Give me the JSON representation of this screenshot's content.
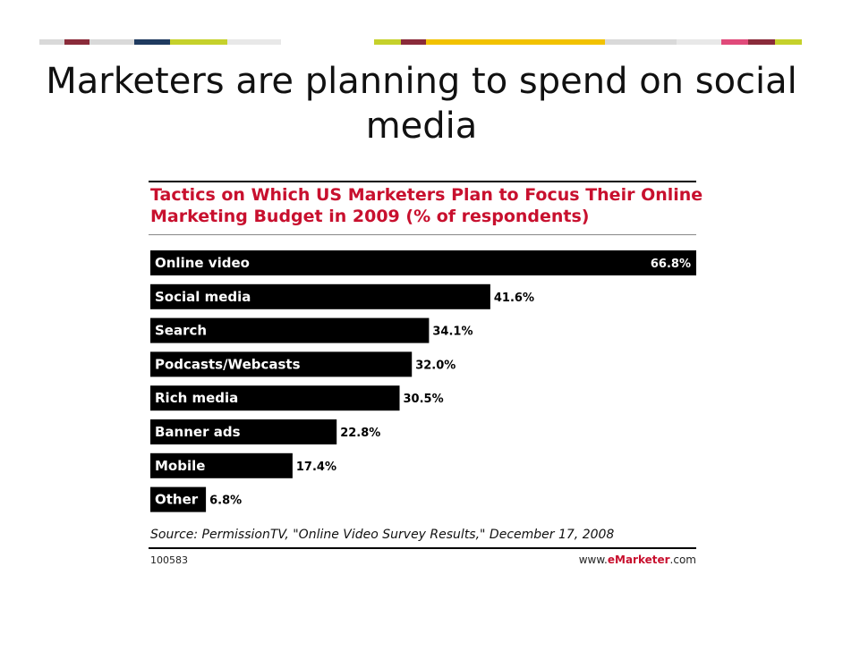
{
  "slide": {
    "title": "Marketers are planning to spend on social media"
  },
  "colors": {
    "accent_red": "#c8102e",
    "bar": "#000000",
    "stripe": [
      "#d9d9d9",
      "#1f3a5f",
      "#8a2b3a",
      "#c5d12b",
      "#e8e8e8",
      "#f2c200",
      "#e04a7a",
      "#b0b0b0"
    ]
  },
  "chart_data": {
    "type": "bar",
    "orientation": "horizontal",
    "title": "Tactics on Which US Marketers Plan to Focus Their Online Marketing Budget in 2009 (% of respondents)",
    "categories": [
      "Online video",
      "Social media",
      "Search",
      "Podcasts/Webcasts",
      "Rich media",
      "Banner ads",
      "Mobile",
      "Other"
    ],
    "values": [
      66.8,
      41.6,
      34.1,
      32.0,
      30.5,
      22.8,
      17.4,
      6.8
    ],
    "value_labels": [
      "66.8%",
      "41.6%",
      "34.1%",
      "32.0%",
      "30.5%",
      "22.8%",
      "17.4%",
      "6.8%"
    ],
    "xlim": [
      0,
      66.8
    ],
    "grid": false,
    "source": "Source: PermissionTV, \"Online Video Survey Results,\" December 17, 2008",
    "chart_id": "100583",
    "site_prefix": "www.",
    "site_brand": "eMarketer",
    "site_suffix": ".com"
  }
}
